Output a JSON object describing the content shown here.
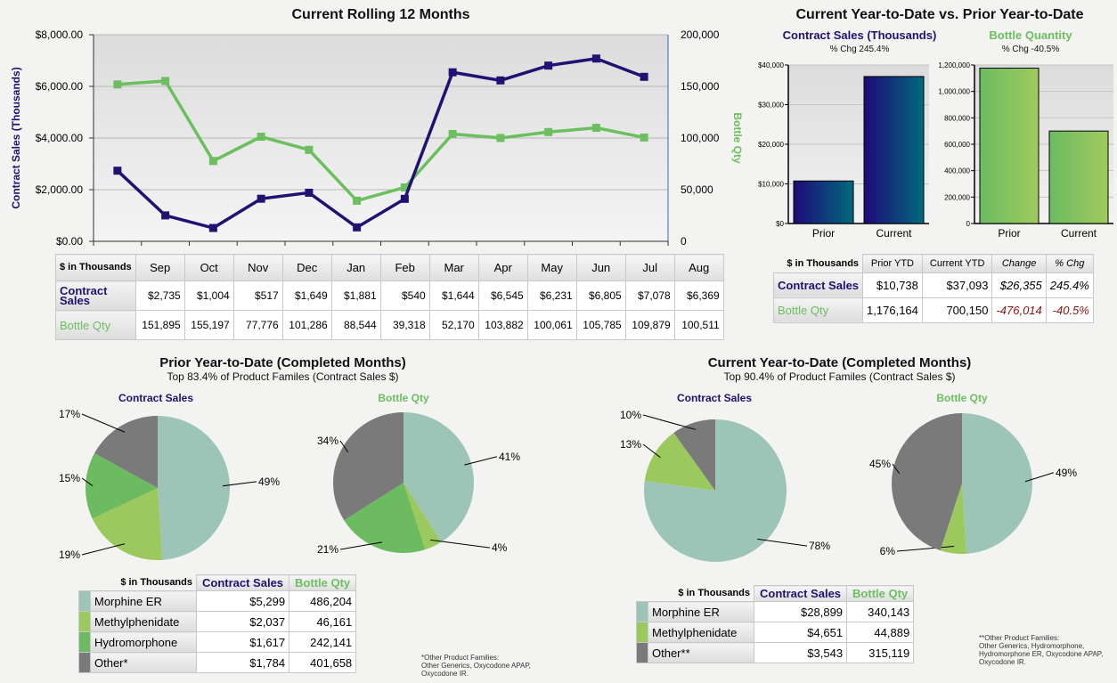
{
  "rolling": {
    "title": "Current Rolling 12 Months",
    "ylabel_left": "Contract Sales (Thousands)",
    "ylabel_right": "Bottle Qty",
    "left_ticks": [
      "$0.00",
      "$2,000.00",
      "$4,000.00",
      "$6,000.00",
      "$8,000.00"
    ],
    "right_ticks": [
      "0",
      "50,000",
      "100,000",
      "150,000",
      "200,000"
    ],
    "table_header": "$ in Thousands",
    "row_sales": "Contract Sales",
    "row_qty": "Bottle Qty",
    "sales_fmt": [
      "$2,735",
      "$1,004",
      "$517",
      "$1,649",
      "$1,881",
      "$540",
      "$1,644",
      "$6,545",
      "$6,231",
      "$6,805",
      "$7,078",
      "$6,369"
    ],
    "qty_fmt": [
      "151,895",
      "155,197",
      "77,776",
      "101,286",
      "88,544",
      "39,318",
      "52,170",
      "103,882",
      "100,061",
      "105,785",
      "109,879",
      "100,511"
    ]
  },
  "ytd": {
    "title": "Current Year-to-Date vs. Prior Year-to-Date",
    "sales_title": "Contract Sales (Thousands)",
    "sales_chg": "% Chg 245.4%",
    "qty_title": "Bottle Quantity",
    "qty_chg": "% Chg -40.5%",
    "sales_ticks": [
      "$0",
      "$10,000",
      "$20,000",
      "$30,000",
      "$40,000"
    ],
    "qty_ticks": [
      "0",
      "200,000",
      "400,000",
      "600,000",
      "800,000",
      "1,000,000",
      "1,200,000"
    ],
    "table": {
      "header": [
        "$ in Thousands",
        "Prior YTD",
        "Current YTD",
        "Change",
        "% Chg"
      ],
      "rows": [
        [
          "Contract Sales",
          "$10,738",
          "$37,093",
          "$26,355",
          "245.4%"
        ],
        [
          "Bottle Qty",
          "1,176,164",
          "700,150",
          "-476,014",
          "-40.5%"
        ]
      ]
    }
  },
  "prior": {
    "title": "Prior Year-to-Date (Completed Months)",
    "subtitle": "Top 83.4% of Product Familes (Contract Sales $)",
    "pie_sales_title": "Contract Sales",
    "pie_qty_title": "Bottle Qty",
    "table": {
      "header": [
        "$ in Thousands",
        "Contract Sales",
        "Bottle Qty"
      ],
      "rows": [
        [
          "Morphine ER",
          "$5,299",
          "486,204"
        ],
        [
          "Methylphenidate",
          "$2,037",
          "46,161"
        ],
        [
          "Hydromorphone",
          "$1,617",
          "242,141"
        ],
        [
          "Other*",
          "$1,784",
          "401,658"
        ]
      ]
    },
    "footnote": [
      "*Other Product Families:",
      "Other Generics, Oxycodone APAP,",
      "Oxycodone IR."
    ]
  },
  "current": {
    "title": "Current Year-to-Date (Completed Months)",
    "subtitle": "Top 90.4% of Product Familes (Contract Sales $)",
    "pie_sales_title": "Contract Sales",
    "pie_qty_title": "Bottle Qty",
    "table": {
      "header": [
        "$ in Thousands",
        "Contract Sales",
        "Bottle Qty"
      ],
      "rows": [
        [
          "Morphine ER",
          "$28,899",
          "340,143"
        ],
        [
          "Methylphenidate",
          "$4,651",
          "44,889"
        ],
        [
          "Other**",
          "$3,543",
          "315,119"
        ]
      ]
    },
    "footnote": [
      "**Other Product Families:",
      "Other Generics, Hydromorphone,",
      "Hydromorphone ER, Oxycodone APAP,",
      "Oxycodone IR."
    ]
  },
  "colors": {
    "navy": "#1f1272",
    "green": "#6cbf5f",
    "morphine": "#9cc5b7",
    "methyl": "#9cc95d",
    "hydro": "#6dbb60",
    "other": "#7a7a7a"
  },
  "chart_data": [
    {
      "type": "line",
      "title": "Current Rolling 12 Months",
      "categories": [
        "Sep",
        "Oct",
        "Nov",
        "Dec",
        "Jan",
        "Feb",
        "Mar",
        "Apr",
        "May",
        "Jun",
        "Jul",
        "Aug"
      ],
      "series": [
        {
          "name": "Contract Sales",
          "axis": "left",
          "values": [
            2735,
            1004,
            517,
            1649,
            1881,
            540,
            1644,
            6545,
            6231,
            6805,
            7078,
            6369
          ]
        },
        {
          "name": "Bottle Qty",
          "axis": "right",
          "values": [
            151895,
            155197,
            77776,
            101286,
            88544,
            39318,
            52170,
            103882,
            100061,
            105785,
            109879,
            100511
          ]
        }
      ],
      "ylim_left": [
        0,
        8000
      ],
      "ylim_right": [
        0,
        200000
      ],
      "ylabel": "Contract Sales (Thousands)",
      "ylabel_right": "Bottle Qty",
      "grid": true
    },
    {
      "type": "bar",
      "title": "Contract Sales (Thousands)",
      "categories": [
        "Prior",
        "Current"
      ],
      "values": [
        10738,
        37093
      ],
      "ylim": [
        0,
        40000
      ]
    },
    {
      "type": "bar",
      "title": "Bottle Quantity",
      "categories": [
        "Prior",
        "Current"
      ],
      "values": [
        1176164,
        700150
      ],
      "ylim": [
        0,
        1200000
      ]
    },
    {
      "type": "pie",
      "title": "Contract Sales",
      "group": "prior",
      "categories": [
        "Morphine ER",
        "Methylphenidate",
        "Hydromorphone",
        "Other*"
      ],
      "values": [
        49,
        19,
        15,
        17
      ]
    },
    {
      "type": "pie",
      "title": "Bottle Qty",
      "group": "prior",
      "categories": [
        "Morphine ER",
        "Methylphenidate",
        "Hydromorphone",
        "Other*"
      ],
      "values": [
        41,
        4,
        21,
        34
      ]
    },
    {
      "type": "pie",
      "title": "Contract Sales",
      "group": "current",
      "categories": [
        "Morphine ER",
        "Methylphenidate",
        "Other**"
      ],
      "values": [
        78,
        13,
        10
      ]
    },
    {
      "type": "pie",
      "title": "Bottle Qty",
      "group": "current",
      "categories": [
        "Morphine ER",
        "Methylphenidate",
        "Other**"
      ],
      "values": [
        49,
        6,
        45
      ]
    }
  ]
}
